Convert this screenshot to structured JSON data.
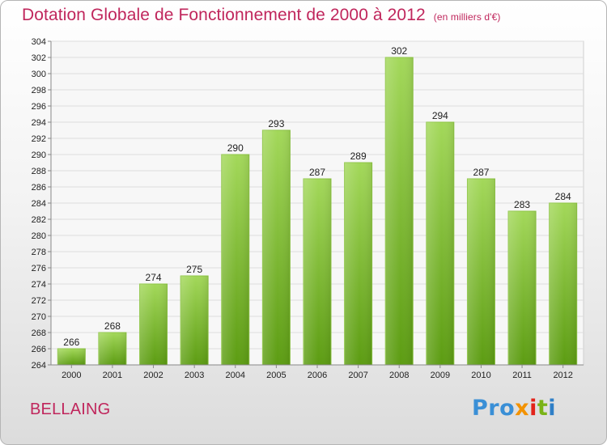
{
  "title": "Dotation Globale de Fonctionnement de 2000 à 2012",
  "subtitle": "(en milliers d'€)",
  "commune": "BELLAING",
  "logo": {
    "p1": "Pro",
    "p2": "x",
    "p3": "i",
    "p4": "t",
    "p5": "i"
  },
  "colors": {
    "bar_top": "#9fd457",
    "bar_bottom": "#5a9a10",
    "title": "#c0265c"
  },
  "chart_data": {
    "type": "bar",
    "title": "Dotation Globale de Fonctionnement de 2000 à 2012",
    "subtitle": "(en milliers d'€)",
    "xlabel": "",
    "ylabel": "",
    "categories": [
      "2000",
      "2001",
      "2002",
      "2003",
      "2004",
      "2005",
      "2006",
      "2007",
      "2008",
      "2009",
      "2010",
      "2011",
      "2012"
    ],
    "values": [
      266,
      268,
      274,
      275,
      290,
      293,
      287,
      289,
      302,
      294,
      287,
      283,
      284
    ],
    "data_labels": [
      "266",
      "268",
      "274",
      "275",
      "290",
      "293",
      "287",
      "289",
      "302",
      "294",
      "287",
      "283",
      "284"
    ],
    "ylim": [
      264,
      304
    ],
    "yticks": [
      "264",
      "266",
      "268",
      "270",
      "272",
      "274",
      "276",
      "278",
      "280",
      "282",
      "284",
      "286",
      "288",
      "290",
      "292",
      "294",
      "296",
      "298",
      "300",
      "302",
      "304"
    ],
    "grid": true,
    "legend": "none"
  }
}
